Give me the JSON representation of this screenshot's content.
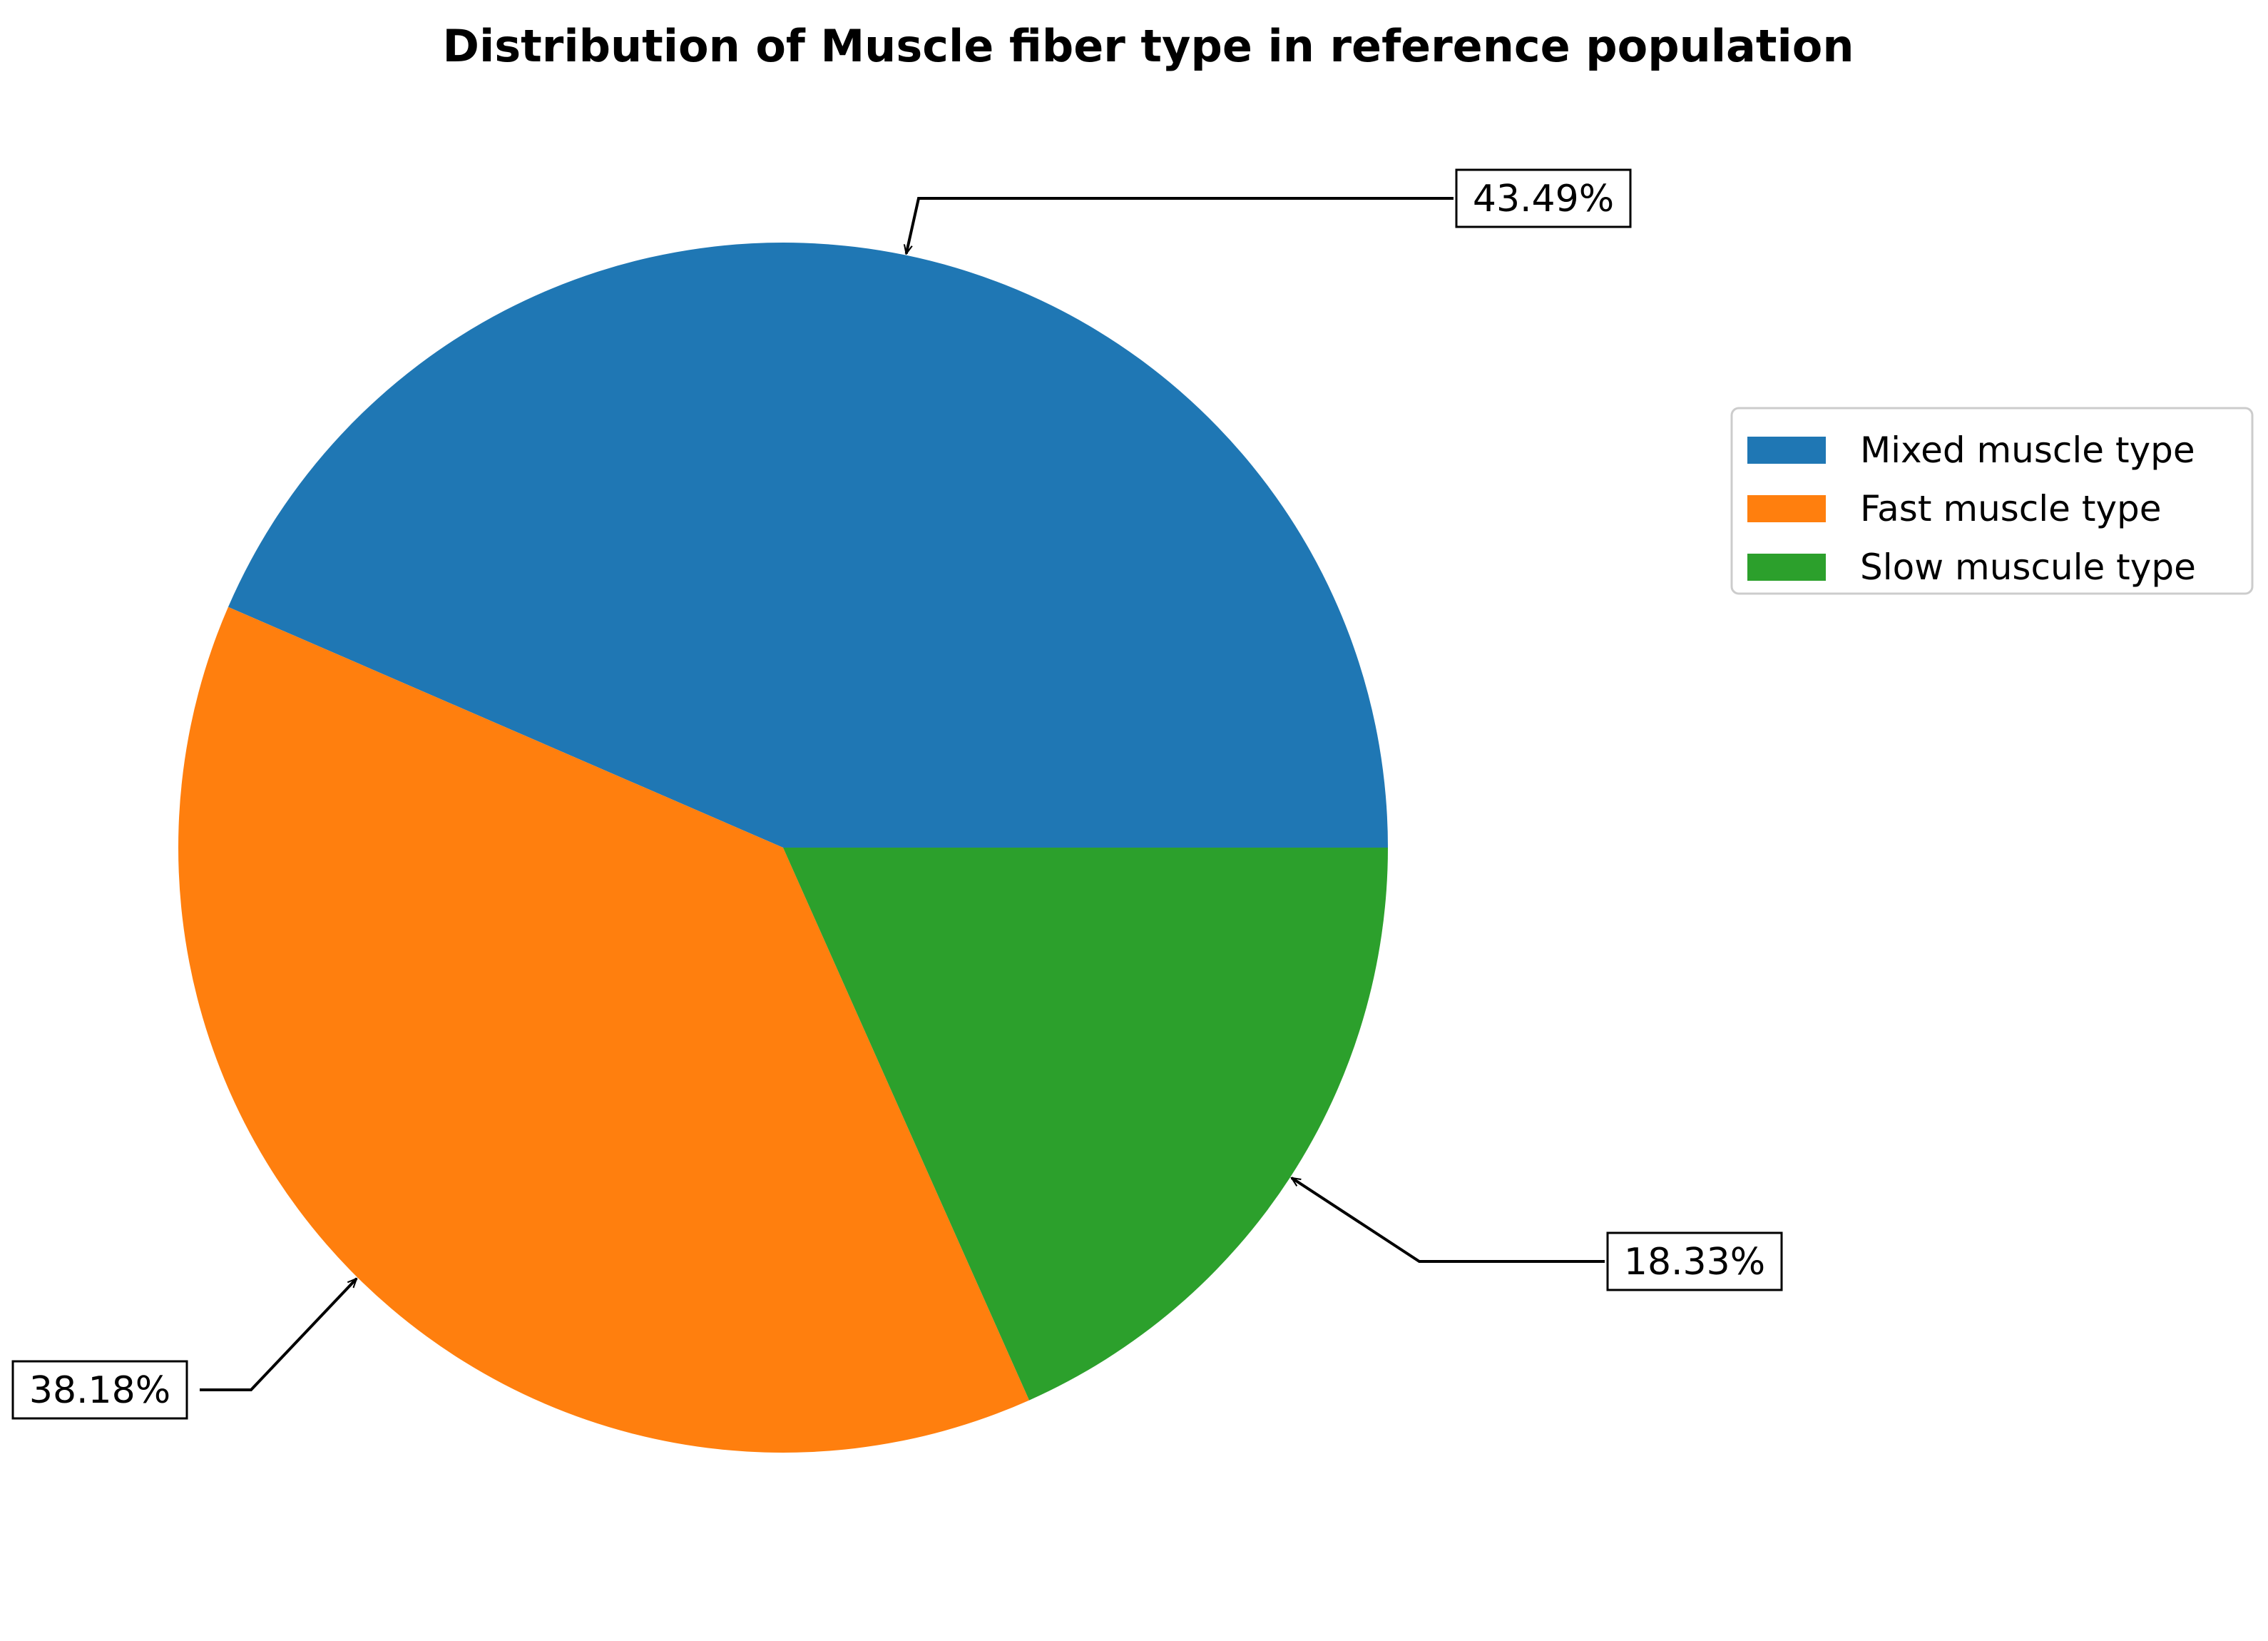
{
  "chart_data": {
    "type": "pie",
    "title": "Distribution of Muscle fiber type in reference population",
    "slices": [
      {
        "label": "Mixed muscle type",
        "value": 43.49,
        "label_text": "43.49%",
        "color": "#1f77b4"
      },
      {
        "label": "Fast muscle type",
        "value": 38.18,
        "label_text": "38.18%",
        "color": "#ff7f0e"
      },
      {
        "label": "Slow muscule type",
        "value": 18.33,
        "label_text": "18.33%",
        "color": "#2ca02c"
      }
    ],
    "start_angle_deg": 0,
    "direction": "counterclockwise",
    "legend_position": "right",
    "label_style": "boxed annotations with arrows"
  }
}
